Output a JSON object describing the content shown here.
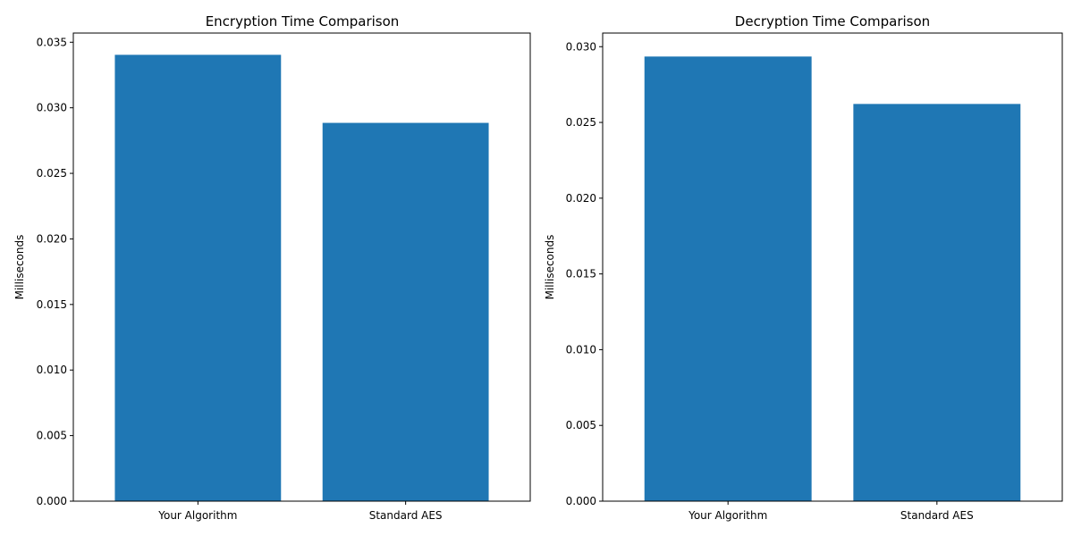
{
  "chart_data": [
    {
      "type": "bar",
      "title": "Encryption Time Comparison",
      "xlabel": "",
      "ylabel": "Milliseconds",
      "categories": [
        "Your Algorithm",
        "Standard AES"
      ],
      "values": [
        0.03404,
        0.02885
      ],
      "ylim": [
        0,
        0.0357
      ],
      "yticks": [
        "0.000",
        "0.005",
        "0.010",
        "0.015",
        "0.020",
        "0.025",
        "0.030",
        "0.035"
      ],
      "bar_color": "#1f77b4",
      "grid": false,
      "legend": "none"
    },
    {
      "type": "bar",
      "title": "Decryption Time Comparison",
      "xlabel": "",
      "ylabel": "Milliseconds",
      "categories": [
        "Your Algorithm",
        "Standard AES"
      ],
      "values": [
        0.02935,
        0.02622
      ],
      "ylim": [
        0,
        0.0309
      ],
      "yticks": [
        "0.000",
        "0.005",
        "0.010",
        "0.015",
        "0.020",
        "0.025",
        "0.030"
      ],
      "bar_color": "#1f77b4",
      "grid": false,
      "legend": "none"
    }
  ]
}
